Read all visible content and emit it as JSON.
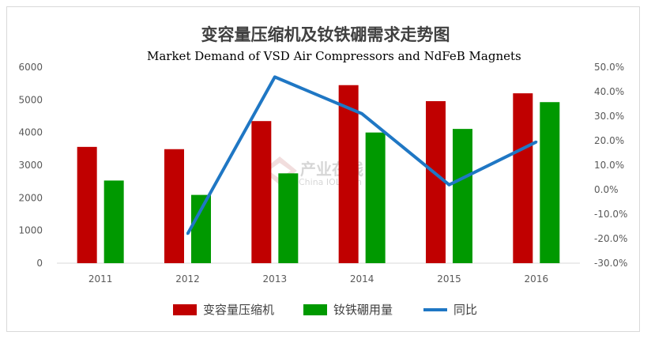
{
  "chart_data": {
    "type": "bar",
    "title": "变容量压缩机及钕铁硼需求走势图",
    "subtitle": "Market Demand of VSD Air Compressors and NdFeB Magnets",
    "categories": [
      "2011",
      "2012",
      "2013",
      "2014",
      "2015",
      "2016"
    ],
    "series": [
      {
        "name": "变容量压缩机",
        "type": "bar",
        "axis": "left",
        "color": "#C00000",
        "values": [
          3560,
          3490,
          4350,
          5450,
          4960,
          5200
        ]
      },
      {
        "name": "钕铁硼用量",
        "type": "bar",
        "axis": "left",
        "color": "#009900",
        "values": [
          2530,
          2090,
          2750,
          4000,
          4110,
          4930
        ]
      },
      {
        "name": "同比",
        "type": "line",
        "axis": "right",
        "color": "#1F77C4",
        "values": [
          null,
          -18.0,
          46.0,
          31.0,
          2.0,
          19.5
        ]
      }
    ],
    "y_left": {
      "min": 0,
      "max": 6000,
      "step": 1000,
      "ticks": [
        "0",
        "1000",
        "2000",
        "3000",
        "4000",
        "5000",
        "6000"
      ]
    },
    "y_right": {
      "min": -30,
      "max": 50,
      "step": 10,
      "ticks": [
        "-30.0%",
        "-20.0%",
        "-10.0%",
        "0.0%",
        "10.0%",
        "20.0%",
        "30.0%",
        "40.0%",
        "50.0%"
      ]
    },
    "grid": false,
    "legend": "bottom"
  },
  "watermark": {
    "text": "产业在线",
    "sub": "China IOL.com"
  }
}
